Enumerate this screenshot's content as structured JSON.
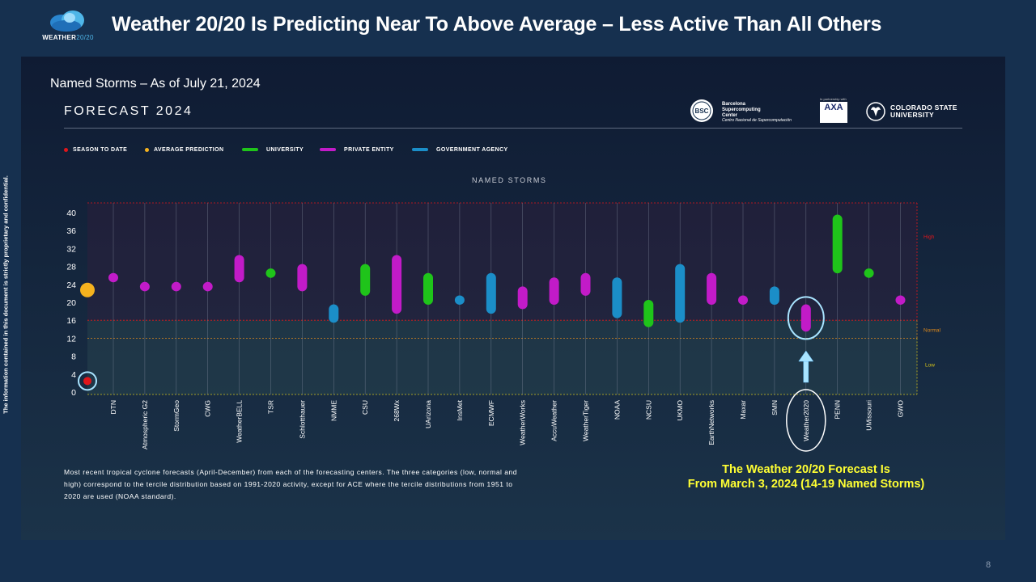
{
  "header": {
    "title": "Weather 20/20 Is Predicting Near To Above Average – Less Active Than All Others",
    "logo_main": "WEATHER",
    "logo_accent": "20/20"
  },
  "side_note": "The information contained in this document is strictly proprietary and confidential.",
  "subtitle": "Named Storms – As of July 21, 2024",
  "forecast_title": "FORECAST 2024",
  "partners": {
    "bsc_badge": "BSC",
    "bsc_lines": [
      "Barcelona",
      "Supercomputing",
      "Center"
    ],
    "bsc_sub": "Centro Nacional de Supercomputación",
    "axa_small": "In partnership with",
    "axa": "AXA",
    "csu_lines": [
      "COLORADO STATE",
      "UNIVERSITY"
    ]
  },
  "legend": [
    {
      "label": "SEASON TO DATE",
      "kind": "dot",
      "color": "#e0161b"
    },
    {
      "label": "AVERAGE PREDICTION",
      "kind": "dot",
      "color": "#f5b21e"
    },
    {
      "label": "UNIVERSITY",
      "kind": "bar",
      "color": "#1fc41a"
    },
    {
      "label": "PRIVATE ENTITY",
      "kind": "bar",
      "color": "#c21bc8"
    },
    {
      "label": "GOVERNMENT AGENCY",
      "kind": "bar",
      "color": "#1b8ec8"
    }
  ],
  "chart_data": {
    "type": "range-bar",
    "title": "NAMED STORMS",
    "ylim": [
      0,
      42
    ],
    "yticks": [
      0,
      4,
      8,
      12,
      16,
      20,
      24,
      28,
      32,
      36,
      40
    ],
    "season_to_date": 3,
    "average_prediction": 24,
    "terciles": {
      "low_max": 12,
      "normal_max": 16,
      "high_max": 43
    },
    "tercile_labels": {
      "high": "High",
      "normal": "Normal",
      "low": "Low"
    },
    "colors": {
      "university": "#1fc41a",
      "private": "#c21bc8",
      "government": "#1b8ec8",
      "season": "#e0161b",
      "average": "#f5b21e",
      "high": "#e0161b",
      "normal": "#e08a1b",
      "low": "#d4c21b"
    },
    "forecasts": [
      {
        "name": "DTN",
        "min": 25,
        "max": 26,
        "type": "private"
      },
      {
        "name": "Atmospheric G2",
        "min": 23,
        "max": 24,
        "type": "private"
      },
      {
        "name": "StormGeo",
        "min": 23,
        "max": 24,
        "type": "private"
      },
      {
        "name": "CWG",
        "min": 23,
        "max": 24,
        "type": "private"
      },
      {
        "name": "WeatherBELL",
        "min": 25,
        "max": 30,
        "type": "private"
      },
      {
        "name": "TSR",
        "min": 26,
        "max": 27,
        "type": "university"
      },
      {
        "name": "Schlotthauer",
        "min": 23,
        "max": 28,
        "type": "private"
      },
      {
        "name": "NMME",
        "min": 16,
        "max": 19,
        "type": "government"
      },
      {
        "name": "CSU",
        "min": 22,
        "max": 28,
        "type": "university"
      },
      {
        "name": "268Wx",
        "min": 18,
        "max": 30,
        "type": "private"
      },
      {
        "name": "UArizona",
        "min": 20,
        "max": 26,
        "type": "university"
      },
      {
        "name": "InsMet",
        "min": 20,
        "max": 21,
        "type": "government"
      },
      {
        "name": "ECMWF",
        "min": 18,
        "max": 26,
        "type": "government"
      },
      {
        "name": "WeatherWorks",
        "min": 19,
        "max": 23,
        "type": "private"
      },
      {
        "name": "AccuWeather",
        "min": 20,
        "max": 25,
        "type": "private"
      },
      {
        "name": "WeatherTiger",
        "min": 22,
        "max": 26,
        "type": "private"
      },
      {
        "name": "NOAA",
        "min": 17,
        "max": 25,
        "type": "government"
      },
      {
        "name": "NCSU",
        "min": 15,
        "max": 20,
        "type": "university"
      },
      {
        "name": "UKMO",
        "min": 16,
        "max": 28,
        "type": "government"
      },
      {
        "name": "EarthNetworks",
        "min": 20,
        "max": 26,
        "type": "private"
      },
      {
        "name": "Maxar",
        "min": 20,
        "max": 21,
        "type": "private"
      },
      {
        "name": "SMN",
        "min": 20,
        "max": 23,
        "type": "government"
      },
      {
        "name": "Weather2020",
        "min": 14,
        "max": 19,
        "type": "private"
      },
      {
        "name": "PENN",
        "min": 27,
        "max": 39,
        "type": "university"
      },
      {
        "name": "UMissouri",
        "min": 26,
        "max": 27,
        "type": "university"
      },
      {
        "name": "GWO",
        "min": 20,
        "max": 21,
        "type": "private"
      }
    ],
    "highlight": "Weather2020"
  },
  "note": "Most recent tropical cyclone forecasts (April-December) from each of the forecasting centers. The three categories (low, normal and high) correspond to the tercile distribution based on 1991-2020 activity, except for ACE where the tercile distributions from 1951 to 2020 are used (NOAA standard).",
  "callout": {
    "line1": "The Weather 20/20 Forecast Is",
    "line2": "From March 3, 2024 (14-19 Named Storms)"
  },
  "page_number": "8"
}
